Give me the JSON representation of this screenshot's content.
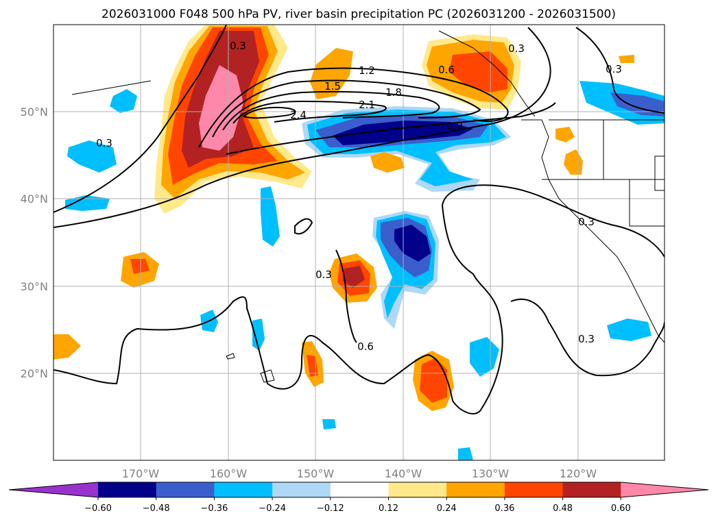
{
  "title": "2026031000 F048 500 hPa PV, river basin precipitation PC (2026031200 - 2026031500)",
  "lon_labels": [
    "170°W",
    "160°W",
    "150°W",
    "140°W",
    "130°W",
    "120°W"
  ],
  "lat_labels": [
    "50°N",
    "40°N",
    "30°N",
    "20°N"
  ],
  "colorbar": {
    "ticks": [
      "−0.60",
      "−0.48",
      "−0.36",
      "−0.24",
      "−0.12",
      "0.12",
      "0.24",
      "0.36",
      "0.48",
      "0.60"
    ],
    "colors": [
      "#9932cc",
      "#00008b",
      "#3a5fcd",
      "#00bfff",
      "#add8f6",
      "#ffffff",
      "#ffe98a",
      "#ffa500",
      "#ff4500",
      "#b22222",
      "#ff88aa"
    ]
  },
  "contour_labels": [
    "0.3",
    "0.6",
    "1.2",
    "1.5",
    "1.8",
    "2.1",
    "2.4",
    "0.9",
    "0.3",
    "0.3",
    "0.3",
    "0.3",
    "0.3",
    "0.6",
    "0.3"
  ]
}
